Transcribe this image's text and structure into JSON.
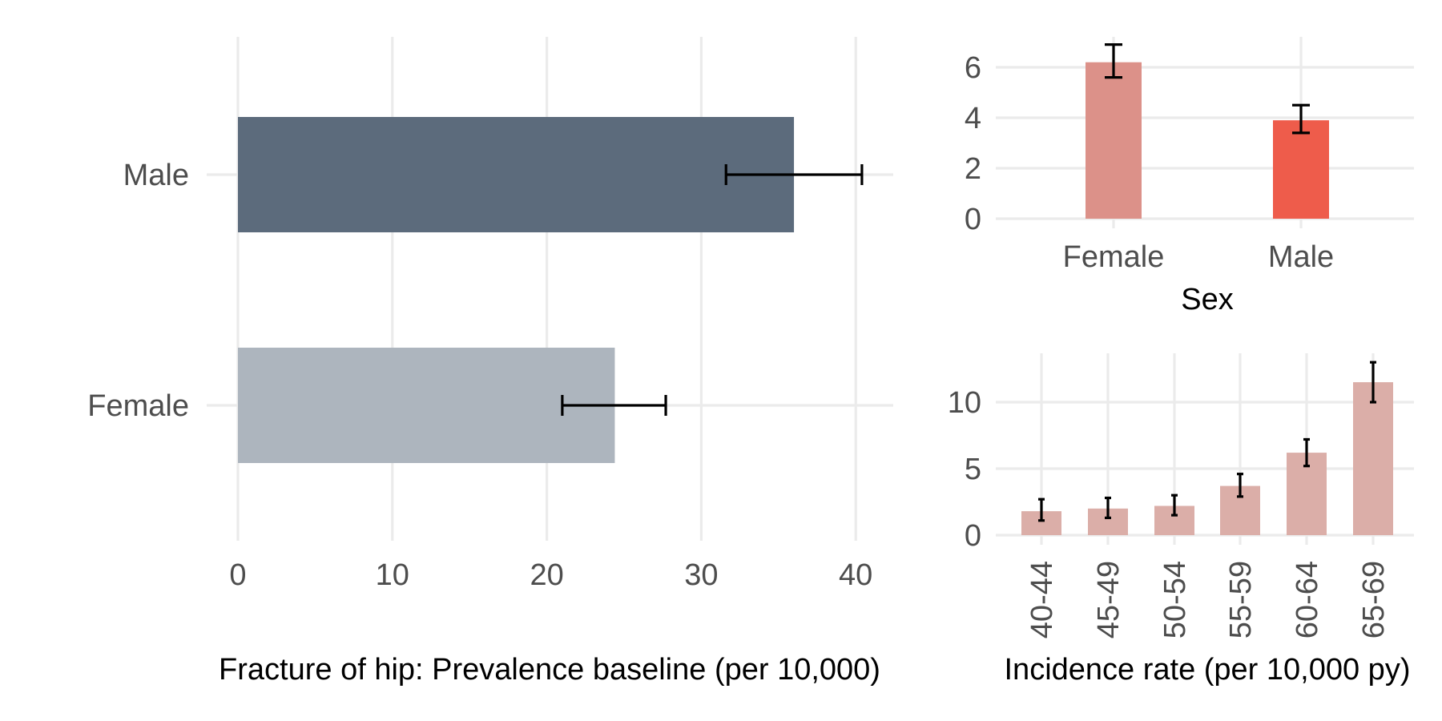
{
  "chart_data": [
    {
      "id": "prevalence",
      "type": "bar",
      "orientation": "horizontal",
      "title": "",
      "xlabel": "Fracture of hip: Prevalence baseline (per 10,000)",
      "ylabel": "",
      "xlim": [
        0,
        42.5
      ],
      "xticks": [
        0,
        10,
        20,
        30,
        40
      ],
      "xtick_labels": [
        "0",
        "10",
        "20",
        "30",
        "40"
      ],
      "categories": [
        "Male",
        "Female"
      ],
      "values": [
        36.0,
        24.4
      ],
      "error_low": [
        31.6,
        21.0
      ],
      "error_high": [
        40.4,
        27.7
      ],
      "colors": [
        "#5c6b7c",
        "#adb5be"
      ],
      "grid": true,
      "legend": "none"
    },
    {
      "id": "incidence_by_sex",
      "type": "bar",
      "orientation": "vertical",
      "title": "",
      "xlabel": "Sex",
      "ylabel": "",
      "ylim": [
        0,
        7
      ],
      "yticks": [
        0,
        2,
        4,
        6
      ],
      "ytick_labels": [
        "0",
        "2",
        "4",
        "6"
      ],
      "categories": [
        "Female",
        "Male"
      ],
      "values": [
        6.2,
        3.9
      ],
      "error_low": [
        5.6,
        3.4
      ],
      "error_high": [
        6.9,
        4.5
      ],
      "colors": [
        "#dc9189",
        "#ee5c4b"
      ],
      "grid": true,
      "legend": "none"
    },
    {
      "id": "incidence_by_age",
      "type": "bar",
      "orientation": "vertical",
      "title": "",
      "xlabel": "Incidence rate (per 10,000 py)",
      "ylabel": "",
      "ylim": [
        0,
        13.5
      ],
      "yticks": [
        0,
        5,
        10
      ],
      "ytick_labels": [
        "0",
        "5",
        "10"
      ],
      "categories": [
        "40-44",
        "45-49",
        "50-54",
        "55-59",
        "60-64",
        "65-69"
      ],
      "values": [
        1.8,
        2.0,
        2.2,
        3.7,
        6.2,
        11.5
      ],
      "error_low": [
        1.1,
        1.3,
        1.5,
        2.9,
        5.2,
        10.0
      ],
      "error_high": [
        2.7,
        2.8,
        3.0,
        4.6,
        7.2,
        13.0
      ],
      "colors": [
        "#dbaea8"
      ],
      "grid": true,
      "legend": "none"
    }
  ]
}
